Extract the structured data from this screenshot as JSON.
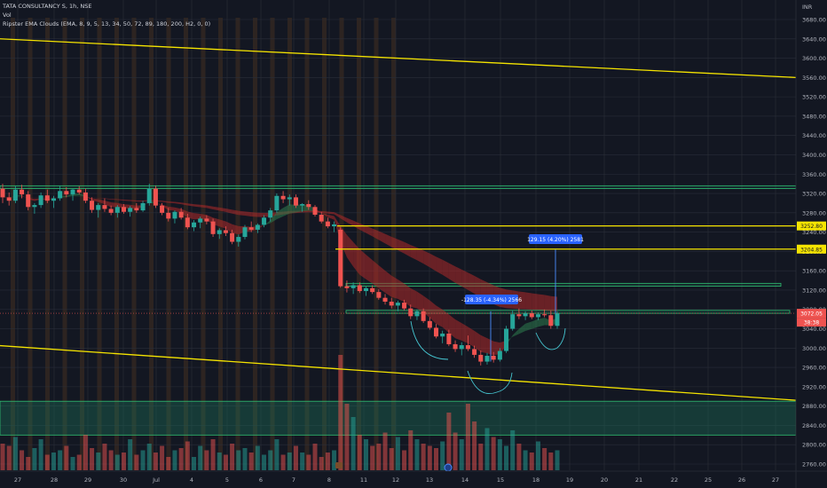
{
  "legend": {
    "symbol_line": "TATA CONSULTANCY S, 1h, NSE",
    "vol_label": "Vol",
    "indicator_line": "Ripster EMA Clouds (EMA, 8, 9, 5, 13, 34, 50, 72, 89, 180, 200, H2, 0, 0)"
  },
  "price_axis": {
    "currency": "INR",
    "ticks": [
      "3680.00",
      "3640.00",
      "3600.00",
      "3560.00",
      "3520.00",
      "3480.00",
      "3440.00",
      "3400.00",
      "3360.00",
      "3320.00",
      "3280.00",
      "3240.00",
      "3200.00",
      "3160.00",
      "3120.00",
      "3080.00",
      "3040.00",
      "3000.00",
      "2960.00",
      "2920.00",
      "2880.00",
      "2840.00",
      "2800.00",
      "2760.00"
    ],
    "tick_values": [
      3680,
      3640,
      3600,
      3560,
      3520,
      3480,
      3440,
      3400,
      3360,
      3320,
      3280,
      3240,
      3200,
      3160,
      3120,
      3080,
      3040,
      3000,
      2960,
      2920,
      2880,
      2840,
      2800,
      2760
    ],
    "label_level_1": "3252.80",
    "label_level_2": "3204.85",
    "last_price": "3072.05",
    "countdown": "38:38"
  },
  "time_axis": {
    "ticks": [
      "27",
      "28",
      "29",
      "30",
      "Jul",
      "4",
      "5",
      "6",
      "7",
      "8",
      "11",
      "12",
      "13",
      "14",
      "15",
      "18",
      "19",
      "20",
      "21",
      "22",
      "25",
      "26",
      "27"
    ]
  },
  "annotations": {
    "measure_1": "-128.35 (-4.34%) 2566",
    "measure_2": "129.15 (4.20%) 2581"
  },
  "colors": {
    "background": "#131722",
    "up": "#26a69a",
    "down": "#ef5350",
    "channel": "#f5e400",
    "zone": "#1e7a5e",
    "session": "#e07b22",
    "label_blue": "#2962ff"
  },
  "chart_data": {
    "type": "candlestick",
    "title": "TATA CONSULTANCY S, 1h, NSE",
    "ylim": [
      2740,
      3700
    ],
    "y_scale": "linear",
    "grid": true,
    "candles": [
      {
        "o": 3330,
        "h": 3340,
        "l": 3300,
        "c": 3312
      },
      {
        "o": 3312,
        "h": 3322,
        "l": 3295,
        "c": 3305
      },
      {
        "o": 3305,
        "h": 3335,
        "l": 3300,
        "c": 3328
      },
      {
        "o": 3328,
        "h": 3338,
        "l": 3310,
        "c": 3318
      },
      {
        "o": 3318,
        "h": 3325,
        "l": 3285,
        "c": 3292
      },
      {
        "o": 3292,
        "h": 3300,
        "l": 3278,
        "c": 3296
      },
      {
        "o": 3296,
        "h": 3322,
        "l": 3290,
        "c": 3316
      },
      {
        "o": 3316,
        "h": 3328,
        "l": 3300,
        "c": 3305
      },
      {
        "o": 3305,
        "h": 3315,
        "l": 3290,
        "c": 3310
      },
      {
        "o": 3310,
        "h": 3335,
        "l": 3305,
        "c": 3325
      },
      {
        "o": 3325,
        "h": 3333,
        "l": 3312,
        "c": 3318
      },
      {
        "o": 3318,
        "h": 3330,
        "l": 3305,
        "c": 3328
      },
      {
        "o": 3328,
        "h": 3335,
        "l": 3318,
        "c": 3322
      },
      {
        "o": 3322,
        "h": 3330,
        "l": 3300,
        "c": 3305
      },
      {
        "o": 3305,
        "h": 3312,
        "l": 3280,
        "c": 3286
      },
      {
        "o": 3286,
        "h": 3300,
        "l": 3270,
        "c": 3296
      },
      {
        "o": 3296,
        "h": 3310,
        "l": 3282,
        "c": 3288
      },
      {
        "o": 3288,
        "h": 3295,
        "l": 3275,
        "c": 3280
      },
      {
        "o": 3280,
        "h": 3296,
        "l": 3270,
        "c": 3292
      },
      {
        "o": 3292,
        "h": 3298,
        "l": 3278,
        "c": 3282
      },
      {
        "o": 3282,
        "h": 3294,
        "l": 3272,
        "c": 3290
      },
      {
        "o": 3290,
        "h": 3300,
        "l": 3280,
        "c": 3285
      },
      {
        "o": 3285,
        "h": 3305,
        "l": 3282,
        "c": 3300
      },
      {
        "o": 3300,
        "h": 3340,
        "l": 3295,
        "c": 3330
      },
      {
        "o": 3330,
        "h": 3336,
        "l": 3290,
        "c": 3295
      },
      {
        "o": 3295,
        "h": 3300,
        "l": 3275,
        "c": 3280
      },
      {
        "o": 3280,
        "h": 3290,
        "l": 3262,
        "c": 3268
      },
      {
        "o": 3268,
        "h": 3285,
        "l": 3258,
        "c": 3282
      },
      {
        "o": 3282,
        "h": 3290,
        "l": 3266,
        "c": 3270
      },
      {
        "o": 3270,
        "h": 3278,
        "l": 3246,
        "c": 3250
      },
      {
        "o": 3250,
        "h": 3265,
        "l": 3242,
        "c": 3260
      },
      {
        "o": 3260,
        "h": 3272,
        "l": 3248,
        "c": 3268
      },
      {
        "o": 3268,
        "h": 3275,
        "l": 3256,
        "c": 3262
      },
      {
        "o": 3262,
        "h": 3268,
        "l": 3230,
        "c": 3236
      },
      {
        "o": 3236,
        "h": 3248,
        "l": 3226,
        "c": 3244
      },
      {
        "o": 3244,
        "h": 3252,
        "l": 3232,
        "c": 3238
      },
      {
        "o": 3238,
        "h": 3245,
        "l": 3215,
        "c": 3220
      },
      {
        "o": 3220,
        "h": 3235,
        "l": 3210,
        "c": 3230
      },
      {
        "o": 3230,
        "h": 3255,
        "l": 3225,
        "c": 3250
      },
      {
        "o": 3250,
        "h": 3262,
        "l": 3240,
        "c": 3245
      },
      {
        "o": 3245,
        "h": 3258,
        "l": 3238,
        "c": 3255
      },
      {
        "o": 3255,
        "h": 3275,
        "l": 3250,
        "c": 3270
      },
      {
        "o": 3270,
        "h": 3290,
        "l": 3262,
        "c": 3285
      },
      {
        "o": 3285,
        "h": 3320,
        "l": 3280,
        "c": 3315
      },
      {
        "o": 3315,
        "h": 3325,
        "l": 3300,
        "c": 3308
      },
      {
        "o": 3308,
        "h": 3318,
        "l": 3295,
        "c": 3312
      },
      {
        "o": 3312,
        "h": 3318,
        "l": 3290,
        "c": 3295
      },
      {
        "o": 3295,
        "h": 3300,
        "l": 3282,
        "c": 3298
      },
      {
        "o": 3298,
        "h": 3306,
        "l": 3286,
        "c": 3292
      },
      {
        "o": 3292,
        "h": 3296,
        "l": 3272,
        "c": 3276
      },
      {
        "o": 3276,
        "h": 3282,
        "l": 3258,
        "c": 3262
      },
      {
        "o": 3262,
        "h": 3270,
        "l": 3248,
        "c": 3252
      },
      {
        "o": 3252,
        "h": 3262,
        "l": 3240,
        "c": 3256
      },
      {
        "o": 3245,
        "h": 3250,
        "l": 3125,
        "c": 3128
      },
      {
        "o": 3128,
        "h": 3140,
        "l": 3115,
        "c": 3124
      },
      {
        "o": 3124,
        "h": 3136,
        "l": 3112,
        "c": 3130
      },
      {
        "o": 3130,
        "h": 3136,
        "l": 3114,
        "c": 3118
      },
      {
        "o": 3118,
        "h": 3128,
        "l": 3108,
        "c": 3124
      },
      {
        "o": 3124,
        "h": 3130,
        "l": 3112,
        "c": 3116
      },
      {
        "o": 3116,
        "h": 3122,
        "l": 3100,
        "c": 3104
      },
      {
        "o": 3104,
        "h": 3112,
        "l": 3090,
        "c": 3096
      },
      {
        "o": 3096,
        "h": 3104,
        "l": 3082,
        "c": 3088
      },
      {
        "o": 3088,
        "h": 3098,
        "l": 3076,
        "c": 3094
      },
      {
        "o": 3094,
        "h": 3100,
        "l": 3078,
        "c": 3082
      },
      {
        "o": 3082,
        "h": 3090,
        "l": 3060,
        "c": 3066
      },
      {
        "o": 3066,
        "h": 3080,
        "l": 3058,
        "c": 3076
      },
      {
        "o": 3076,
        "h": 3082,
        "l": 3052,
        "c": 3056
      },
      {
        "o": 3056,
        "h": 3064,
        "l": 3038,
        "c": 3042
      },
      {
        "o": 3042,
        "h": 3050,
        "l": 3020,
        "c": 3024
      },
      {
        "o": 3024,
        "h": 3036,
        "l": 3010,
        "c": 3030
      },
      {
        "o": 3030,
        "h": 3038,
        "l": 3004,
        "c": 3008
      },
      {
        "o": 3008,
        "h": 3016,
        "l": 2992,
        "c": 2998
      },
      {
        "o": 2998,
        "h": 3012,
        "l": 2985,
        "c": 3006
      },
      {
        "o": 3006,
        "h": 3026,
        "l": 2994,
        "c": 2998
      },
      {
        "o": 2998,
        "h": 3005,
        "l": 2980,
        "c": 2986
      },
      {
        "o": 2986,
        "h": 2995,
        "l": 2964,
        "c": 2972
      },
      {
        "o": 2972,
        "h": 2990,
        "l": 2966,
        "c": 2984
      },
      {
        "o": 2984,
        "h": 2992,
        "l": 2970,
        "c": 2976
      },
      {
        "o": 2976,
        "h": 3000,
        "l": 2972,
        "c": 2994
      },
      {
        "o": 2994,
        "h": 3046,
        "l": 2990,
        "c": 3040
      },
      {
        "o": 3040,
        "h": 3078,
        "l": 3036,
        "c": 3070
      },
      {
        "o": 3070,
        "h": 3082,
        "l": 3060,
        "c": 3066
      },
      {
        "o": 3066,
        "h": 3076,
        "l": 3058,
        "c": 3072
      },
      {
        "o": 3072,
        "h": 3078,
        "l": 3060,
        "c": 3064
      },
      {
        "o": 3064,
        "h": 3074,
        "l": 3058,
        "c": 3070
      },
      {
        "o": 3070,
        "h": 3080,
        "l": 3064,
        "c": 3068
      },
      {
        "o": 3068,
        "h": 3078,
        "l": 3040,
        "c": 3046
      },
      {
        "o": 3046,
        "h": 3076,
        "l": 3040,
        "c": 3072
      }
    ],
    "horizontal_levels": [
      3252.8,
      3204.85
    ],
    "zones": [
      {
        "from": 3330,
        "to": 3336
      },
      {
        "from": 3128,
        "to": 3134
      },
      {
        "from": 3072,
        "to": 3078
      },
      {
        "from": 2820,
        "to": 2890
      }
    ],
    "channel": {
      "upper": {
        "from": {
          "x": "27",
          "y": 3640
        },
        "to": {
          "x": "27 (next)",
          "y": 3560
        }
      },
      "lower": {
        "from": {
          "x": "27",
          "y": 3005
        },
        "to": {
          "x": "27 (next)",
          "y": 2892
        }
      }
    },
    "volume": [
      60,
      55,
      75,
      45,
      30,
      50,
      70,
      35,
      40,
      45,
      55,
      30,
      35,
      80,
      50,
      40,
      60,
      45,
      35,
      40,
      70,
      35,
      45,
      60,
      40,
      55,
      30,
      45,
      50,
      65,
      30,
      55,
      45,
      70,
      40,
      35,
      60,
      45,
      50,
      40,
      55,
      35,
      45,
      70,
      35,
      40,
      55,
      40,
      35,
      60,
      30,
      40,
      45,
      260,
      150,
      120,
      80,
      70,
      55,
      60,
      85,
      50,
      75,
      45,
      90,
      70,
      60,
      55,
      50,
      65,
      130,
      85,
      70,
      150,
      110,
      60,
      95,
      75,
      70,
      55,
      90,
      60,
      45,
      40,
      65,
      50,
      40,
      45,
      60
    ]
  }
}
